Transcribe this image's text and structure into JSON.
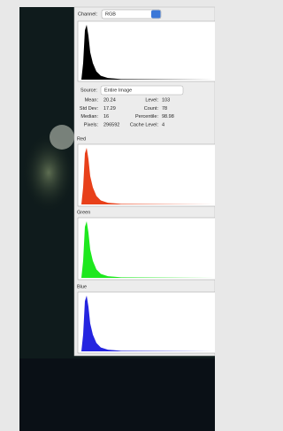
{
  "channel": {
    "label": "Channel:",
    "value": "RGB"
  },
  "source": {
    "label": "Source:",
    "value": "Entire Image"
  },
  "stats": [
    {
      "label": "Mean:",
      "value": 20.24
    },
    {
      "label": "Level:",
      "value": 103
    },
    {
      "label": "Std Dev:",
      "value": 17.29
    },
    {
      "label": "Count:",
      "value": 78
    },
    {
      "label": "Median:",
      "value": 16
    },
    {
      "label": "Percentile:",
      "value": 98.98
    },
    {
      "label": "Pixels:",
      "value": 296592
    },
    {
      "label": "Cache Level:",
      "value": 4
    }
  ],
  "channels": [
    {
      "label": "Red"
    },
    {
      "label": "Green"
    },
    {
      "label": "Blue"
    }
  ]
}
